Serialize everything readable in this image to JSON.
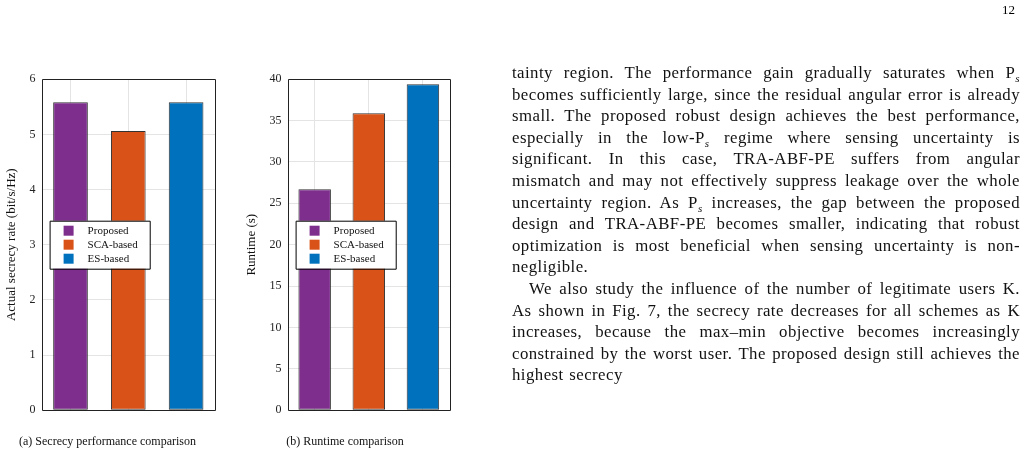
{
  "chart_data": [
    {
      "type": "bar",
      "title": "(a) Secrecy performance comparison",
      "ylabel": "Actual secrecy rate (bit/s/Hz)",
      "categories": [
        null,
        null,
        null
      ],
      "series": [
        {
          "name": "Proposed",
          "color": "#7e2f8e",
          "values": [
            5.58,
            null,
            null
          ]
        },
        {
          "name": "SCA-based",
          "color": "#d95319",
          "values": [
            null,
            5.06,
            null
          ]
        },
        {
          "name": "ES-based",
          "color": "#0072bd",
          "values": [
            null,
            null,
            5.58
          ]
        }
      ],
      "ylim": [
        0,
        6
      ],
      "yticks": [
        0,
        1,
        2,
        3,
        4,
        5,
        6
      ],
      "grid": true,
      "legend": "left"
    },
    {
      "type": "bar",
      "title": "(b) Runtime comparison",
      "ylabel": "Runtime (s)",
      "categories": [
        null,
        null,
        null
      ],
      "series": [
        {
          "name": "Proposed",
          "color": "#7e2f8e",
          "values": [
            26.7,
            null,
            null
          ]
        },
        {
          "name": "SCA-based",
          "color": "#d95319",
          "values": [
            null,
            35.9,
            null
          ]
        },
        {
          "name": "ES-based",
          "color": "#0072bd",
          "values": [
            null,
            null,
            39.4
          ]
        }
      ],
      "ylim": [
        0,
        40
      ],
      "yticks": [
        0,
        5,
        10,
        15,
        20,
        25,
        30,
        35,
        40
      ],
      "grid": true,
      "legend": "left"
    },
    {
      "type": "other",
      "annotations": [
        "12",
        "tainty region. The performance gain gradually saturates when P$_{s}$ becomes sufficiently large, since the residual angular error is already small. The proposed robust design achieves the best performance, especially in the low-P$_{s}$ regime where sensing uncertainty is significant. In this case, TRA-ABF-PE suffers from angular mismatch and may not effectively suppress leakage over the whole uncertainty region. As P$_{s}$ increases, the gap between the proposed design and TRA-ABF-PE becomes smaller, indicating that robust optimization is most beneficial when sensing uncertainty is non-negligible.",
        "We also study the influence of the number of legitimate users K. As shown in Fig. 7, the secrecy rate decreases for all schemes as K increases, because the max–min objective becomes increasingly constrained by the worst user. The proposed design still achieves the highest secrecy"
      ]
    }
  ]
}
